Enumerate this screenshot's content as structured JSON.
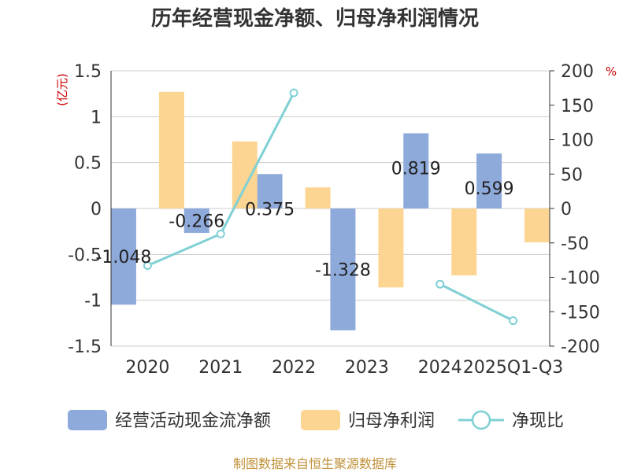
{
  "chart_data": {
    "type": "bar",
    "title": "历年经营现金净额、归母净利润情况",
    "categories": [
      "2020",
      "2021",
      "2022",
      "2023",
      "2024",
      "2025Q1-Q3"
    ],
    "series": [
      {
        "name": "经营活动现金流净额",
        "kind": "bar",
        "axis": "left",
        "color": "#8eaadb",
        "values": [
          -1.048,
          -0.266,
          0.375,
          -1.328,
          0.819,
          0.599
        ],
        "labels": [
          "-1.048",
          "-0.266",
          "0.375",
          "-1.328",
          "0.819",
          "0.599"
        ]
      },
      {
        "name": "归母净利润",
        "kind": "bar",
        "axis": "left",
        "color": "#fdd593",
        "values": [
          1.27,
          0.73,
          0.23,
          -0.86,
          -0.73,
          -0.37
        ]
      },
      {
        "name": "净现比",
        "kind": "line",
        "axis": "right",
        "color": "#7fd0d4",
        "values": [
          -83,
          -37,
          168,
          null,
          -110,
          -163
        ]
      }
    ],
    "left_axis": {
      "unit": "(亿元)",
      "ylim": [
        -1.5,
        1.5
      ],
      "ticks": [
        1.5,
        1,
        0.5,
        0,
        -0.5,
        -1,
        -1.5
      ],
      "tick_labels": [
        "1.5",
        "1",
        "0.5",
        "0",
        "-0.5",
        "-1",
        "-1.5"
      ]
    },
    "right_axis": {
      "unit": "%",
      "ylim": [
        -200,
        200
      ],
      "ticks": [
        200,
        150,
        100,
        50,
        0,
        -50,
        -100,
        -150,
        -200
      ],
      "tick_labels": [
        "200",
        "150",
        "100",
        "50",
        "0",
        "-50",
        "-100",
        "-150",
        "-200"
      ]
    },
    "grid": true,
    "legend_position": "bottom"
  },
  "source": "制图数据来自恒生聚源数据库"
}
